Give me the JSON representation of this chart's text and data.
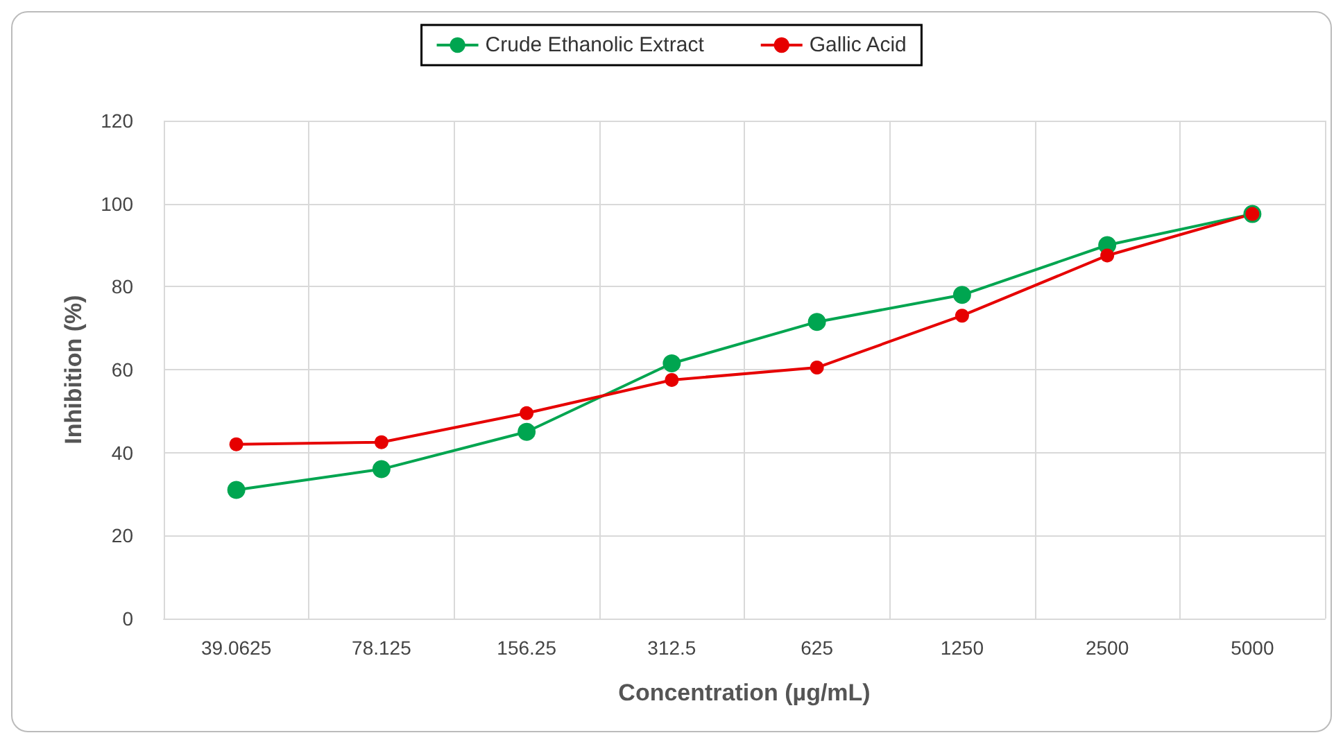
{
  "chart_data": {
    "type": "line",
    "xlabel": "Concentration (µg/mL)",
    "ylabel": "Inhibition (%)",
    "categories": [
      "39.0625",
      "78.125",
      "156.25",
      "312.5",
      "625",
      "1250",
      "2500",
      "5000"
    ],
    "series": [
      {
        "name": "Crude Ethanolic Extract",
        "color": "#00a550",
        "values": [
          31,
          36,
          45,
          61.5,
          71.5,
          78,
          90,
          97.5
        ]
      },
      {
        "name": "Gallic Acid",
        "color": "#e60000",
        "values": [
          42,
          42.5,
          49.5,
          57.5,
          60.5,
          73,
          87.5,
          97.5
        ]
      }
    ],
    "ylim": [
      0,
      120
    ],
    "yticks": [
      0,
      20,
      40,
      60,
      80,
      100,
      120
    ],
    "grid": true,
    "legend": "top",
    "marker": "circle",
    "line_style": "solid"
  }
}
